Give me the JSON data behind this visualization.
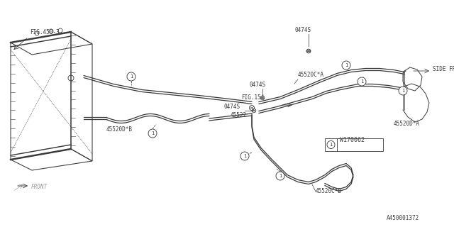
{
  "bg_color": "#ffffff",
  "line_color": "#3a3a3a",
  "diagram_id": "A450001372",
  "legend_code": "W170062",
  "labels": {
    "fig450": "FIG.450-3",
    "fig154": "FIG.154",
    "side_frame": "SIDE FRAME",
    "front": "FRONT",
    "part_0474S_top": "0474S",
    "part_0474S_mid": "0474S",
    "part_0474S_bot": "0474S",
    "part_45520CA": "45520C*A",
    "part_45520DA": "45520D*A",
    "part_45520CB": "45520C*B",
    "part_45520DB": "45520D*B",
    "part_45522": "45522"
  },
  "font_size": 5.5,
  "lw": 0.7
}
